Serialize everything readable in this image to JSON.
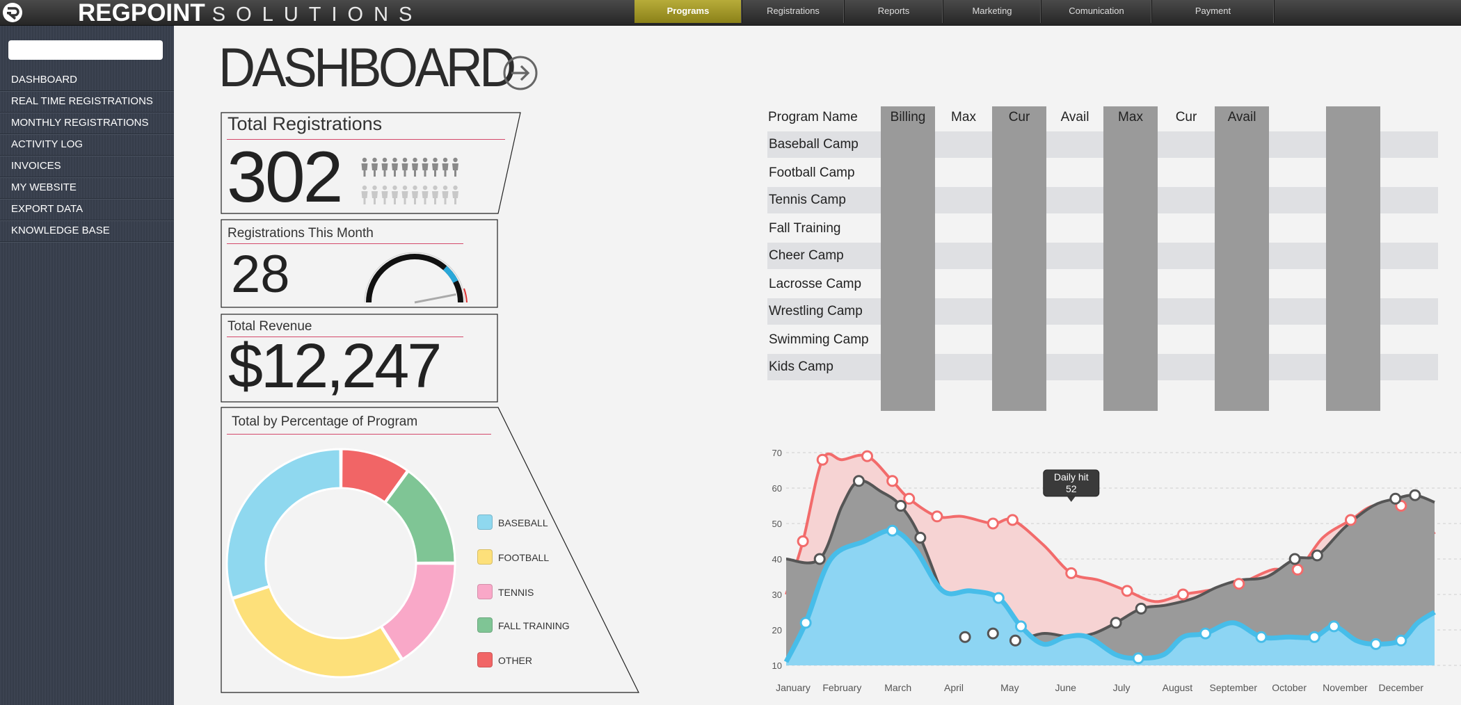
{
  "header": {
    "brand_bold": "REGPOINT",
    "brand_light": "SOLUTIONS",
    "nav": [
      {
        "label": "Programs",
        "active": true
      },
      {
        "label": "Registrations",
        "active": false
      },
      {
        "label": "Reports",
        "active": false
      },
      {
        "label": "Marketing",
        "active": false
      },
      {
        "label": "Comunication",
        "active": false
      },
      {
        "label": "Payment",
        "active": false
      }
    ],
    "accent_color": "#a89d2a"
  },
  "sidebar": {
    "search_placeholder": "",
    "items": [
      {
        "label": "DASHBOARD"
      },
      {
        "label": "REAL TIME REGISTRATIONS"
      },
      {
        "label": "MONTHLY REGISTRATIONS"
      },
      {
        "label": "ACTIVITY LOG"
      },
      {
        "label": "INVOICES"
      },
      {
        "label": "MY WEBSITE"
      },
      {
        "label": "EXPORT DATA"
      },
      {
        "label": "KNOWLEDGE BASE"
      }
    ]
  },
  "main": {
    "title": "DASHBOARD",
    "total_registrations": {
      "label": "Total Registrations",
      "value": "302"
    },
    "registrations_month": {
      "label": "Registrations This Month",
      "value": "28",
      "gauge_fraction": 0.85
    },
    "total_revenue": {
      "label": "Total Revenue",
      "value": "$12,247"
    },
    "percentage": {
      "label": "Total by Percentage of Program",
      "legend": [
        {
          "label": "BASEBALL",
          "color": "#8fd8ef"
        },
        {
          "label": "FOOTBALL",
          "color": "#fde07a"
        },
        {
          "label": "TENNIS",
          "color": "#f9a8c8"
        },
        {
          "label": "FALL TRAINING",
          "color": "#7fc595"
        },
        {
          "label": "OTHER",
          "color": "#f16566"
        }
      ]
    },
    "program_table": {
      "headers": [
        "Program Name",
        "Billing",
        "Max",
        "Cur",
        "Avail",
        "Max",
        "Cur",
        "Avail"
      ],
      "rows": [
        {
          "name": "Baseball Camp"
        },
        {
          "name": "Football Camp"
        },
        {
          "name": "Tennis Camp"
        },
        {
          "name": "Fall Training"
        },
        {
          "name": "Cheer Camp"
        },
        {
          "name": "Lacrosse Camp"
        },
        {
          "name": "Wrestling Camp"
        },
        {
          "name": "Swimming Camp"
        },
        {
          "name": "Kids Camp"
        }
      ]
    },
    "tooltip": {
      "label": "Daily hit",
      "value": "52"
    }
  },
  "chart_data": [
    {
      "type": "pie",
      "donut": true,
      "categories": [
        "BASEBALL",
        "FOOTBALL",
        "TENNIS",
        "FALL TRAINING",
        "OTHER"
      ],
      "values": [
        30,
        29,
        16,
        15,
        10
      ],
      "colors": [
        "#8fd8ef",
        "#fde07a",
        "#f9a8c8",
        "#7fc595",
        "#f16566"
      ]
    },
    {
      "type": "area",
      "categories": [
        "January",
        "February",
        "March",
        "April",
        "May",
        "June",
        "July",
        "August",
        "September",
        "October",
        "November",
        "December"
      ],
      "ylim": [
        10,
        70
      ],
      "yticks": [
        10,
        20,
        30,
        40,
        50,
        60,
        70
      ],
      "grid": true,
      "series": [
        {
          "color": "#f26b6b",
          "fill": "#f6d3d3",
          "x": [
            0.0,
            0.3,
            0.65,
            1.0,
            1.45,
            1.9,
            2.2,
            2.7,
            3.15,
            3.7,
            4.05,
            4.6,
            5.1,
            5.6,
            6.1,
            6.6,
            7.1,
            7.5,
            8.1,
            8.7,
            9.15,
            9.6,
            10.1,
            10.5,
            11.0,
            11.3,
            11.6
          ],
          "y": [
            30,
            45,
            68,
            68,
            69,
            62,
            57,
            52,
            52,
            50,
            51,
            44,
            36,
            34,
            31,
            28,
            30,
            31,
            33,
            37,
            37,
            46,
            51,
            55,
            55,
            54,
            47
          ]
        },
        {
          "color": "#555555",
          "fill": "#9a9a9a",
          "x": [
            0.0,
            0.6,
            1.0,
            1.3,
            1.7,
            2.05,
            2.4,
            2.9,
            3.2,
            3.7,
            4.1,
            4.6,
            5.1,
            5.5,
            5.9,
            6.35,
            6.8,
            7.3,
            7.7,
            8.1,
            8.6,
            9.1,
            9.5,
            10.0,
            10.5,
            10.9,
            11.25,
            11.6
          ],
          "y": [
            40,
            40,
            55,
            62,
            59,
            55,
            46,
            26,
            18,
            19,
            17,
            19,
            18,
            19,
            22,
            26,
            27,
            29,
            32,
            34,
            35,
            40,
            41,
            49,
            55,
            57,
            58,
            56
          ]
        },
        {
          "color": "#47bde9",
          "fill": "#8dd5f3",
          "x": [
            0.0,
            0.35,
            0.8,
            1.4,
            1.9,
            2.3,
            2.8,
            3.3,
            3.8,
            4.2,
            4.6,
            5.0,
            5.4,
            5.9,
            6.3,
            6.75,
            7.1,
            7.5,
            8.0,
            8.5,
            9.0,
            9.45,
            9.8,
            10.2,
            10.55,
            11.0,
            11.3,
            11.6
          ],
          "y": [
            11,
            22,
            40,
            45,
            48,
            43,
            31,
            31,
            29,
            21,
            16,
            18,
            18,
            13,
            12,
            13,
            18,
            19,
            22,
            18,
            18,
            18,
            21,
            17,
            16,
            17,
            22,
            25
          ]
        }
      ]
    }
  ]
}
